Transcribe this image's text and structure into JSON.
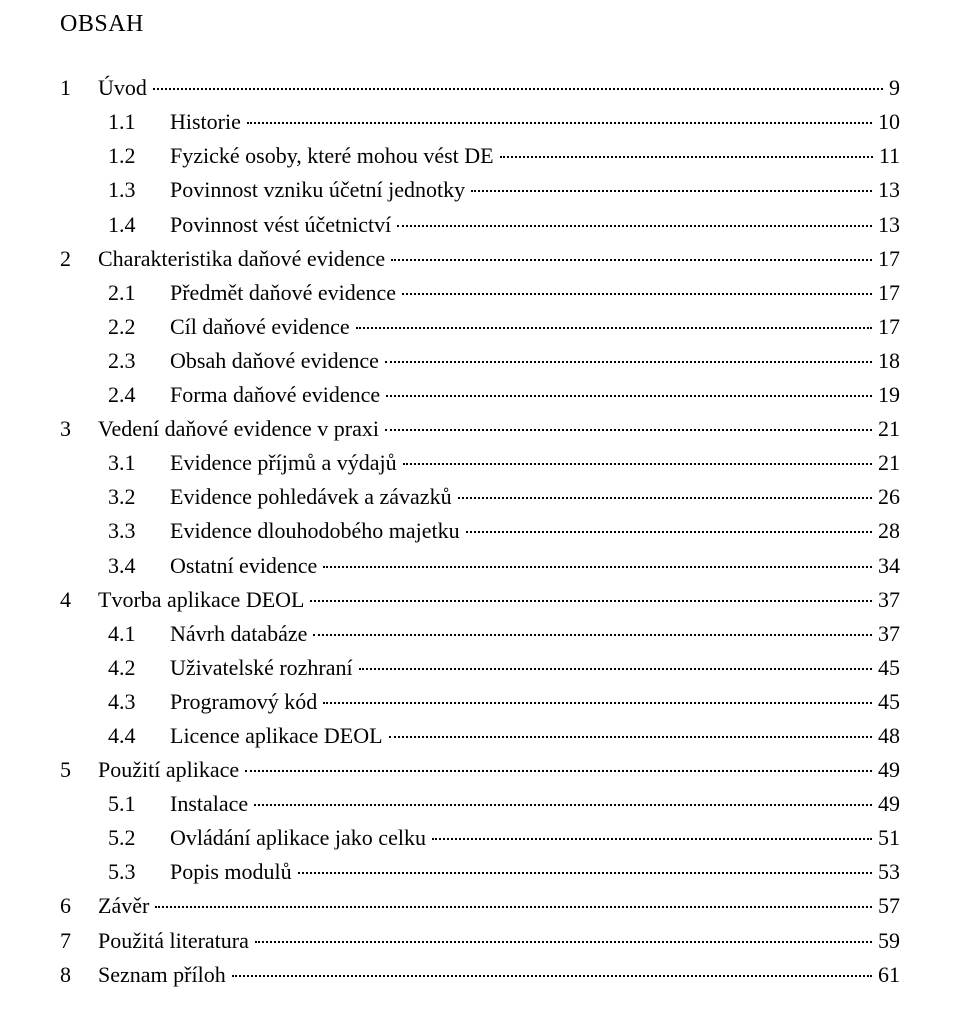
{
  "title": "OBSAH",
  "entries": [
    {
      "level": 0,
      "num": "1",
      "text": "Úvod",
      "page": "9"
    },
    {
      "level": 1,
      "num": "1.1",
      "text": "Historie",
      "page": "10"
    },
    {
      "level": 1,
      "num": "1.2",
      "text": "Fyzické osoby, které mohou vést DE",
      "page": "11"
    },
    {
      "level": 1,
      "num": "1.3",
      "text": "Povinnost vzniku účetní jednotky",
      "page": "13"
    },
    {
      "level": 1,
      "num": "1.4",
      "text": "Povinnost vést účetnictví",
      "page": "13"
    },
    {
      "level": 0,
      "num": "2",
      "text": "Charakteristika daňové evidence",
      "page": "17"
    },
    {
      "level": 1,
      "num": "2.1",
      "text": "Předmět daňové evidence",
      "page": "17"
    },
    {
      "level": 1,
      "num": "2.2",
      "text": "Cíl daňové evidence",
      "page": "17"
    },
    {
      "level": 1,
      "num": "2.3",
      "text": "Obsah daňové evidence",
      "page": "18"
    },
    {
      "level": 1,
      "num": "2.4",
      "text": "Forma daňové evidence",
      "page": "19"
    },
    {
      "level": 0,
      "num": "3",
      "text": "Vedení daňové evidence v praxi",
      "page": "21"
    },
    {
      "level": 1,
      "num": "3.1",
      "text": "Evidence příjmů a výdajů",
      "page": "21"
    },
    {
      "level": 1,
      "num": "3.2",
      "text": "Evidence pohledávek a závazků",
      "page": "26"
    },
    {
      "level": 1,
      "num": "3.3",
      "text": "Evidence dlouhodobého majetku",
      "page": "28"
    },
    {
      "level": 1,
      "num": "3.4",
      "text": "Ostatní evidence",
      "page": "34"
    },
    {
      "level": 0,
      "num": "4",
      "text": "Tvorba aplikace DEOL",
      "page": "37"
    },
    {
      "level": 1,
      "num": "4.1",
      "text": "Návrh databáze",
      "page": "37"
    },
    {
      "level": 1,
      "num": "4.2",
      "text": "Uživatelské rozhraní",
      "page": "45"
    },
    {
      "level": 1,
      "num": "4.3",
      "text": "Programový kód",
      "page": "45"
    },
    {
      "level": 1,
      "num": "4.4",
      "text": "Licence aplikace DEOL",
      "page": "48"
    },
    {
      "level": 0,
      "num": "5",
      "text": "Použití aplikace",
      "page": "49"
    },
    {
      "level": 1,
      "num": "5.1",
      "text": "Instalace",
      "page": "49"
    },
    {
      "level": 1,
      "num": "5.2",
      "text": "Ovládání aplikace jako celku",
      "page": "51"
    },
    {
      "level": 1,
      "num": "5.3",
      "text": "Popis modulů",
      "page": "53"
    },
    {
      "level": 0,
      "num": "6",
      "text": "Závěr",
      "page": "57"
    },
    {
      "level": 0,
      "num": "7",
      "text": "Použitá literatura",
      "page": "59"
    },
    {
      "level": 0,
      "num": "8",
      "text": "Seznam příloh",
      "page": "61"
    }
  ]
}
